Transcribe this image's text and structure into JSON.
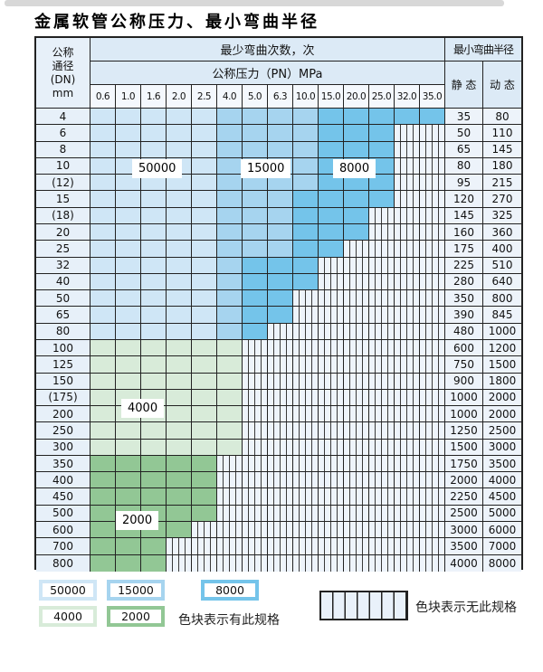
{
  "page_title": "金属软管公称压力、最小弯曲半径",
  "table": {
    "dn_header_lines": [
      "公称",
      "通径",
      "(DN)",
      "mm"
    ],
    "bend_header": "最少弯曲次数，次",
    "pressure_header": "公称压力（PN）MPa",
    "radius_header": "最小弯曲半径",
    "static_header": "静 态",
    "dynamic_header": "动 态",
    "pressure_columns": [
      "0.6",
      "1.0",
      "1.6",
      "2.0",
      "2.5",
      "4.0",
      "5.0",
      "6.3",
      "10.0",
      "15.0",
      "20.0",
      "25.0",
      "32.0",
      "35.0"
    ],
    "rows": [
      {
        "dn": "4",
        "cells": "LLLLLMMMMDDDDD",
        "static": "35",
        "dynamic": "80"
      },
      {
        "dn": "6",
        "cells": "LLLLLMMMMDDDXX",
        "static": "50",
        "dynamic": "110"
      },
      {
        "dn": "8",
        "cells": "LLLLLMMMMDDDXX",
        "static": "65",
        "dynamic": "145"
      },
      {
        "dn": "10",
        "cells": "LLLLLMMMMDDDXX",
        "static": "80",
        "dynamic": "180"
      },
      {
        "dn": "(12)",
        "cells": "LLLLLMMMMDDDXX",
        "static": "95",
        "dynamic": "215"
      },
      {
        "dn": "15",
        "cells": "LLLLLMMMDDDDXX",
        "static": "120",
        "dynamic": "270"
      },
      {
        "dn": "(18)",
        "cells": "LLLLLMMMDDDXXX",
        "static": "145",
        "dynamic": "325"
      },
      {
        "dn": "20",
        "cells": "LLLLLMMMDDDXXX",
        "static": "160",
        "dynamic": "360"
      },
      {
        "dn": "25",
        "cells": "LLLLLMMMDDXXXX",
        "static": "175",
        "dynamic": "400"
      },
      {
        "dn": "32",
        "cells": "LLLLLMDDDXXXXX",
        "static": "225",
        "dynamic": "510"
      },
      {
        "dn": "40",
        "cells": "LLLLLMDDDXXXXX",
        "static": "280",
        "dynamic": "640"
      },
      {
        "dn": "50",
        "cells": "LLLLLMDDXXXXXX",
        "static": "350",
        "dynamic": "800"
      },
      {
        "dn": "65",
        "cells": "LLLLLMDDXXXXXX",
        "static": "390",
        "dynamic": "845"
      },
      {
        "dn": "80",
        "cells": "LLLLLMDXXXXXXX",
        "static": "480",
        "dynamic": "1000"
      },
      {
        "dn": "100",
        "cells": "GGGGGGXXXXXXXX",
        "static": "600",
        "dynamic": "1200"
      },
      {
        "dn": "125",
        "cells": "GGGGGGXXXXXXXX",
        "static": "750",
        "dynamic": "1500"
      },
      {
        "dn": "150",
        "cells": "GGGGGGXXXXXXXX",
        "static": "900",
        "dynamic": "1800"
      },
      {
        "dn": "(175)",
        "cells": "GGGGGGXXXXXXXX",
        "static": "1000",
        "dynamic": "2000"
      },
      {
        "dn": "200",
        "cells": "GGGGGGXXXXXXXX",
        "static": "1000",
        "dynamic": "2000"
      },
      {
        "dn": "250",
        "cells": "GGGGGGXXXXXXXX",
        "static": "1250",
        "dynamic": "2500"
      },
      {
        "dn": "300",
        "cells": "GGGGGGXXXXXXXX",
        "static": "1500",
        "dynamic": "3000"
      },
      {
        "dn": "350",
        "cells": "gggggXXXXXXXXX",
        "static": "1750",
        "dynamic": "3500"
      },
      {
        "dn": "400",
        "cells": "gggggXXXXXXXXX",
        "static": "2000",
        "dynamic": "4000"
      },
      {
        "dn": "450",
        "cells": "gggggXXXXXXXXX",
        "static": "2250",
        "dynamic": "4500"
      },
      {
        "dn": "500",
        "cells": "gggggXXXXXXXXX",
        "static": "2500",
        "dynamic": "5000"
      },
      {
        "dn": "600",
        "cells": "ggggXXXXXXXXXX",
        "static": "3000",
        "dynamic": "6000"
      },
      {
        "dn": "700",
        "cells": "gggXXXXXXXXXXX",
        "static": "3500",
        "dynamic": "7000"
      },
      {
        "dn": "800",
        "cells": "gggXXXXXXXXXXX",
        "static": "4000",
        "dynamic": "8000"
      }
    ]
  },
  "zones": {
    "L": {
      "label": "50000",
      "color": "#cfe6f6"
    },
    "M": {
      "label": "15000",
      "color": "#a6d4ef"
    },
    "D": {
      "label": "8000",
      "color": "#74c4ea"
    },
    "G": {
      "label": "4000",
      "color": "#d8ebd9"
    },
    "g": {
      "label": "2000",
      "color": "#92c795"
    }
  },
  "overlay_labels": {
    "l50000": "50000",
    "l15000": "15000",
    "l8000": "8000",
    "l4000": "4000",
    "l2000": "2000"
  },
  "legend": {
    "items": [
      {
        "label": "50000",
        "color": "#cfe6f6"
      },
      {
        "label": "15000",
        "color": "#a6d4ef"
      },
      {
        "label": "8000",
        "color": "#74c4ea"
      },
      {
        "label": "4000",
        "color": "#d8ebd9"
      },
      {
        "label": "2000",
        "color": "#92c795"
      }
    ],
    "has_spec_text": "色块表示有此规格",
    "no_spec_text": "色块表示无此规格"
  },
  "colors": {
    "border": "#222222",
    "hatch_bg": "#eef4fb",
    "header_bg": "#dceaf6",
    "dn_col_bg": "#e7f0f9",
    "value_col_bg": "#edf3fa"
  }
}
